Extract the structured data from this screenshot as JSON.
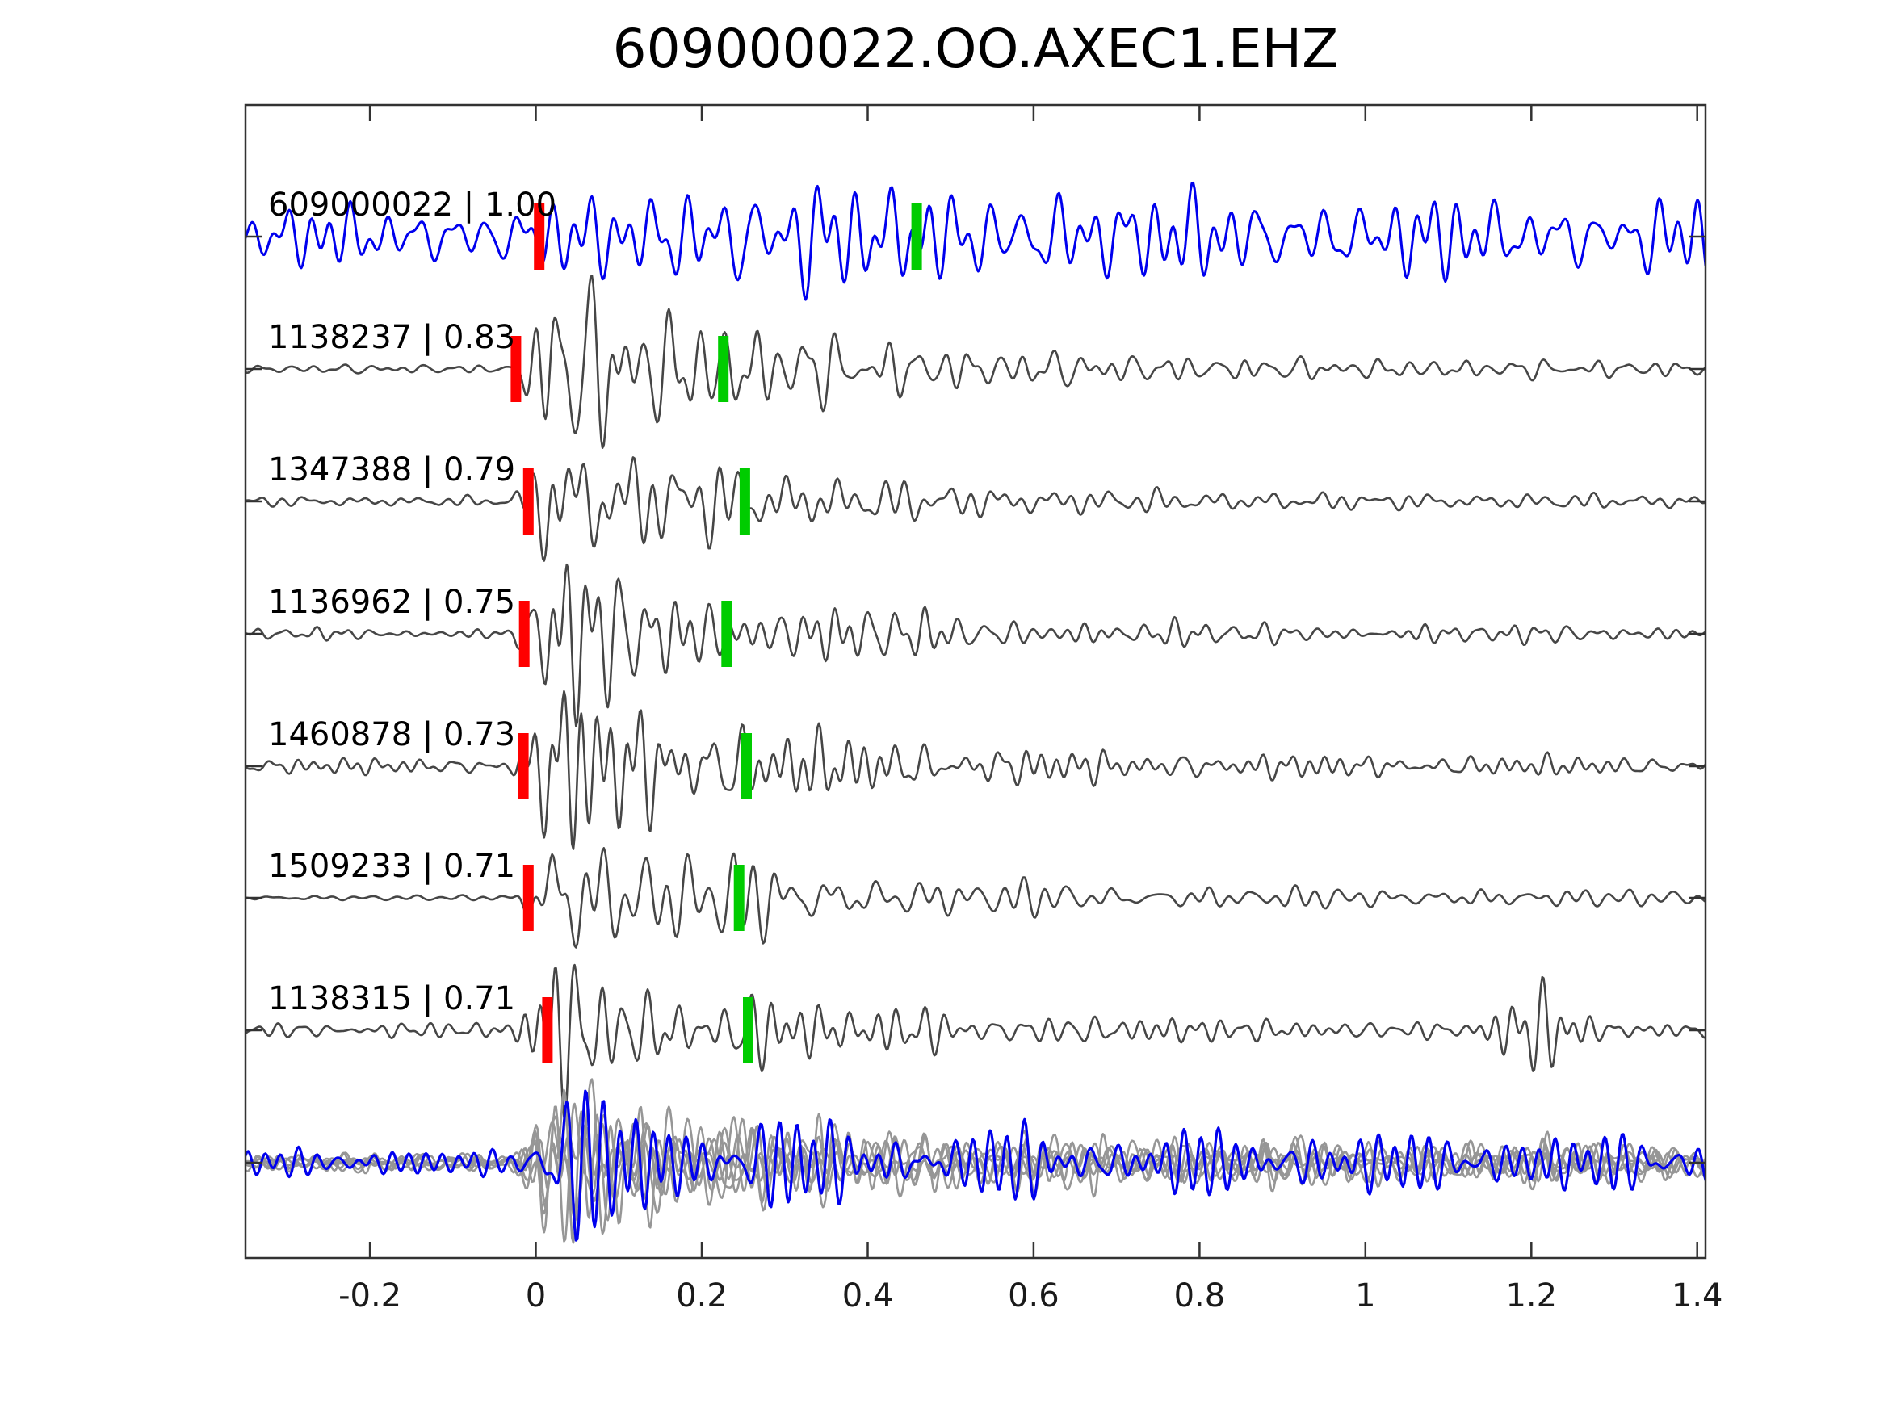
{
  "colors": {
    "template": "#0000EE",
    "matched": "#464646",
    "aligned": "#969696",
    "pick_red": "#FF0000",
    "pick_green": "#00CC00",
    "frame": "#323232",
    "text": "#000000",
    "background": "#FFFFFF"
  },
  "chart_data": {
    "type": "line",
    "title": "609000022.OO.AXEC1.EHZ",
    "xlabel": "",
    "ylabel": "",
    "grid": false,
    "legend": false,
    "xlim": [
      -0.35,
      1.41
    ],
    "xticks": [
      -0.2,
      0,
      0.2,
      0.4,
      0.6,
      0.8,
      1,
      1.2,
      1.4
    ],
    "xtick_labels": [
      "-0.2",
      "0",
      "0.2",
      "0.4",
      "0.6",
      "0.8",
      "1",
      "1.2",
      "1.4"
    ],
    "traces": [
      {
        "id": "609000022",
        "correlation": "1.00",
        "label": "609000022 | 1.00",
        "role": "template",
        "red_pick_t": 0.004,
        "green_pick_t": 0.459,
        "seed": 101,
        "f0": 26,
        "env": [
          [
            -0.35,
            26
          ],
          [
            -0.1,
            28
          ],
          [
            0.05,
            34
          ],
          [
            0.2,
            50
          ],
          [
            0.35,
            56
          ],
          [
            0.5,
            42
          ],
          [
            0.65,
            46
          ],
          [
            0.8,
            40
          ],
          [
            1.0,
            38
          ],
          [
            1.2,
            36
          ],
          [
            1.41,
            38
          ]
        ]
      },
      {
        "id": "1138237",
        "correlation": "0.83",
        "label": "1138237 | 0.83",
        "role": "detection",
        "red_pick_t": -0.024,
        "green_pick_t": 0.226,
        "seed": 202,
        "f0": 33,
        "env": [
          [
            -0.35,
            4
          ],
          [
            -0.03,
            4
          ],
          [
            0,
            52
          ],
          [
            0.02,
            95
          ],
          [
            0.07,
            76
          ],
          [
            0.13,
            59
          ],
          [
            0.22,
            48
          ],
          [
            0.35,
            32
          ],
          [
            0.5,
            21
          ],
          [
            0.7,
            14
          ],
          [
            0.95,
            10
          ],
          [
            1.2,
            9
          ],
          [
            1.41,
            8
          ]
        ]
      },
      {
        "id": "1347388",
        "correlation": "0.79",
        "label": "1347388 | 0.79",
        "role": "detection",
        "red_pick_t": -0.009,
        "green_pick_t": 0.252,
        "seed": 303,
        "f0": 33,
        "env": [
          [
            -0.35,
            6
          ],
          [
            -0.03,
            6
          ],
          [
            0,
            50
          ],
          [
            0.02,
            90
          ],
          [
            0.07,
            72
          ],
          [
            0.13,
            56
          ],
          [
            0.22,
            45
          ],
          [
            0.35,
            31
          ],
          [
            0.5,
            20
          ],
          [
            0.7,
            14
          ],
          [
            0.95,
            10
          ],
          [
            1.2,
            9
          ],
          [
            1.41,
            8
          ]
        ]
      },
      {
        "id": "1136962",
        "correlation": "0.75",
        "label": "1136962 | 0.75",
        "role": "detection",
        "red_pick_t": -0.014,
        "green_pick_t": 0.23,
        "seed": 404,
        "f0": 33,
        "env": [
          [
            -0.35,
            6
          ],
          [
            -0.03,
            6
          ],
          [
            0,
            49
          ],
          [
            0.02,
            88
          ],
          [
            0.07,
            70
          ],
          [
            0.13,
            55
          ],
          [
            0.22,
            44
          ],
          [
            0.35,
            30
          ],
          [
            0.5,
            20
          ],
          [
            0.7,
            13
          ],
          [
            0.95,
            10
          ],
          [
            1.2,
            9
          ],
          [
            1.41,
            8
          ]
        ]
      },
      {
        "id": "1460878",
        "correlation": "0.73",
        "label": "1460878 | 0.73",
        "role": "detection",
        "red_pick_t": -0.015,
        "green_pick_t": 0.254,
        "seed": 505,
        "f0": 33,
        "env": [
          [
            -0.35,
            8
          ],
          [
            -0.03,
            8
          ],
          [
            0,
            51
          ],
          [
            0.02,
            92
          ],
          [
            0.07,
            74
          ],
          [
            0.13,
            58
          ],
          [
            0.22,
            46
          ],
          [
            0.35,
            31
          ],
          [
            0.5,
            21
          ],
          [
            0.7,
            14
          ],
          [
            0.95,
            11
          ],
          [
            1.2,
            10
          ],
          [
            1.41,
            9
          ]
        ]
      },
      {
        "id": "1509233",
        "correlation": "0.71",
        "label": "1509233 | 0.71",
        "role": "detection",
        "red_pick_t": -0.009,
        "green_pick_t": 0.245,
        "seed": 606,
        "f0": 33,
        "env": [
          [
            -0.35,
            2.5
          ],
          [
            -0.03,
            2.5
          ],
          [
            0,
            47
          ],
          [
            0.02,
            85
          ],
          [
            0.07,
            68
          ],
          [
            0.13,
            53
          ],
          [
            0.22,
            42
          ],
          [
            0.35,
            29
          ],
          [
            0.5,
            19
          ],
          [
            0.7,
            13
          ],
          [
            0.95,
            10
          ],
          [
            1.2,
            9
          ],
          [
            1.41,
            8
          ]
        ]
      },
      {
        "id": "1138315",
        "correlation": "0.71",
        "label": "1138315 | 0.71",
        "role": "detection",
        "red_pick_t": 0.014,
        "green_pick_t": 0.256,
        "seed": 707,
        "f0": 33,
        "env": [
          [
            -0.35,
            8
          ],
          [
            -0.03,
            8
          ],
          [
            0,
            45
          ],
          [
            0.02,
            80
          ],
          [
            0.07,
            64
          ],
          [
            0.13,
            50
          ],
          [
            0.22,
            40
          ],
          [
            0.35,
            28
          ],
          [
            0.5,
            20
          ],
          [
            0.7,
            14
          ],
          [
            0.95,
            10
          ],
          [
            1.12,
            9
          ],
          [
            1.17,
            45
          ],
          [
            1.22,
            38
          ],
          [
            1.28,
            11
          ],
          [
            1.41,
            9
          ]
        ]
      }
    ],
    "overlay": {
      "description": "all detections aligned and overlaid with template",
      "members": [
        {
          "seed": 202,
          "f0": 33,
          "amp": 1.0
        },
        {
          "seed": 303,
          "f0": 33,
          "amp": 0.9
        },
        {
          "seed": 404,
          "f0": 33,
          "amp": 0.8
        },
        {
          "seed": 505,
          "f0": 33,
          "amp": 1.05
        },
        {
          "seed": 606,
          "f0": 33,
          "amp": 0.95
        },
        {
          "seed": 707,
          "f0": 33,
          "amp": 0.85
        }
      ],
      "member_env": [
        [
          -0.35,
          9
        ],
        [
          -0.03,
          9
        ],
        [
          0,
          48
        ],
        [
          0.02,
          85
        ],
        [
          0.07,
          68
        ],
        [
          0.13,
          55
        ],
        [
          0.22,
          45
        ],
        [
          0.35,
          34
        ],
        [
          0.5,
          28
        ],
        [
          0.7,
          24
        ],
        [
          0.95,
          22
        ],
        [
          1.2,
          21
        ],
        [
          1.41,
          20
        ]
      ],
      "template_overlay": {
        "seed": 909,
        "f0": 30,
        "amp": 1.0,
        "env": [
          [
            -0.35,
            14
          ],
          [
            -0.03,
            14
          ],
          [
            0,
            52
          ],
          [
            0.02,
            88
          ],
          [
            0.07,
            70
          ],
          [
            0.13,
            58
          ],
          [
            0.25,
            46
          ],
          [
            0.4,
            38
          ],
          [
            0.6,
            34
          ],
          [
            0.8,
            32
          ],
          [
            1.0,
            30
          ],
          [
            1.2,
            30
          ],
          [
            1.41,
            28
          ]
        ]
      }
    }
  }
}
